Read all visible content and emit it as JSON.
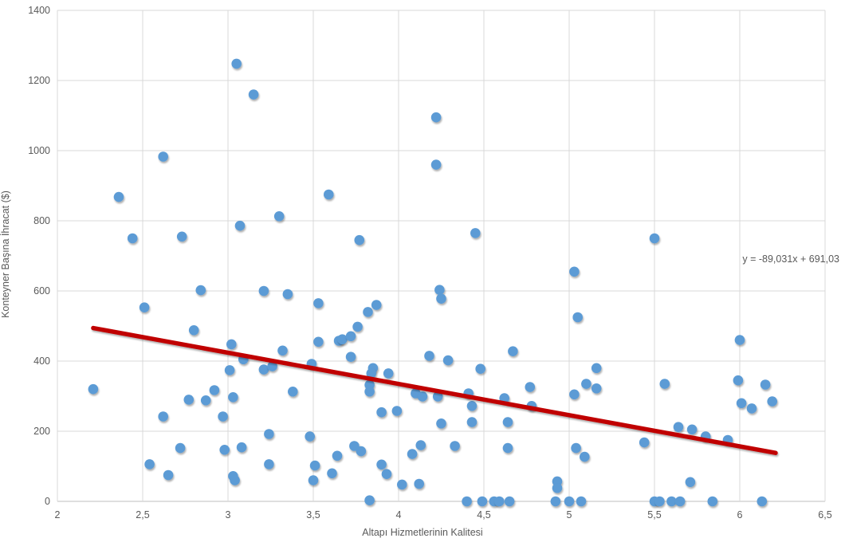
{
  "chart_data": {
    "type": "scatter",
    "title": "",
    "xlabel": "Altapı Hizmetlerinin Kalitesi",
    "ylabel": "Konteyner Başına İhracat ($)",
    "xlim": [
      2,
      6.5
    ],
    "ylim": [
      0,
      1400
    ],
    "grid": true,
    "legend": "none",
    "point_color": "#5B9BD5",
    "gridline_color": "#D9D9D9",
    "text_color": "#595959",
    "x_ticks": [
      {
        "v": 2,
        "label": "2"
      },
      {
        "v": 2.5,
        "label": "2,5"
      },
      {
        "v": 3,
        "label": "3"
      },
      {
        "v": 3.5,
        "label": "3,5"
      },
      {
        "v": 4,
        "label": "4"
      },
      {
        "v": 4.5,
        "label": "4,5"
      },
      {
        "v": 5,
        "label": "5"
      },
      {
        "v": 5.5,
        "label": "5,5"
      },
      {
        "v": 6,
        "label": "6"
      },
      {
        "v": 6.5,
        "label": "6,5"
      }
    ],
    "y_ticks": [
      {
        "v": 0,
        "label": "0"
      },
      {
        "v": 200,
        "label": "200"
      },
      {
        "v": 400,
        "label": "400"
      },
      {
        "v": 600,
        "label": "600"
      },
      {
        "v": 800,
        "label": "800"
      },
      {
        "v": 1000,
        "label": "1000"
      },
      {
        "v": 1200,
        "label": "1200"
      },
      {
        "v": 1400,
        "label": "1400"
      }
    ],
    "trendline": {
      "equation_label": "y = -89,031x + 691,03",
      "slope": -89.031,
      "intercept": 691.03,
      "x_start": 2.21,
      "x_end": 6.21,
      "color": "#C00000"
    },
    "points": [
      [
        2.21,
        320
      ],
      [
        2.36,
        868
      ],
      [
        2.44,
        750
      ],
      [
        2.51,
        553
      ],
      [
        2.54,
        106
      ],
      [
        2.62,
        983
      ],
      [
        2.62,
        242
      ],
      [
        2.65,
        75
      ],
      [
        2.72,
        152
      ],
      [
        2.73,
        755
      ],
      [
        2.77,
        290
      ],
      [
        2.8,
        488
      ],
      [
        2.84,
        602
      ],
      [
        2.87,
        288
      ],
      [
        2.92,
        317
      ],
      [
        2.97,
        242
      ],
      [
        2.98,
        147
      ],
      [
        3.01,
        374
      ],
      [
        3.02,
        448
      ],
      [
        3.03,
        297
      ],
      [
        3.03,
        72
      ],
      [
        3.04,
        60
      ],
      [
        3.05,
        1248
      ],
      [
        3.07,
        786
      ],
      [
        3.08,
        154
      ],
      [
        3.09,
        405
      ],
      [
        3.15,
        1160
      ],
      [
        3.21,
        600
      ],
      [
        3.21,
        376
      ],
      [
        3.24,
        192
      ],
      [
        3.24,
        106
      ],
      [
        3.26,
        385
      ],
      [
        3.3,
        813
      ],
      [
        3.32,
        430
      ],
      [
        3.35,
        591
      ],
      [
        3.38,
        313
      ],
      [
        3.48,
        185
      ],
      [
        3.49,
        392
      ],
      [
        3.5,
        60
      ],
      [
        3.51,
        102
      ],
      [
        3.53,
        565
      ],
      [
        3.53,
        455
      ],
      [
        3.59,
        875
      ],
      [
        3.61,
        80
      ],
      [
        3.64,
        130
      ],
      [
        3.65,
        458
      ],
      [
        3.67,
        462
      ],
      [
        3.72,
        471
      ],
      [
        3.72,
        412
      ],
      [
        3.74,
        158
      ],
      [
        3.76,
        498
      ],
      [
        3.77,
        745
      ],
      [
        3.78,
        143
      ],
      [
        3.82,
        540
      ],
      [
        3.83,
        332
      ],
      [
        3.83,
        313
      ],
      [
        3.83,
        3
      ],
      [
        3.85,
        380
      ],
      [
        3.84,
        365
      ],
      [
        3.87,
        560
      ],
      [
        3.9,
        254
      ],
      [
        3.9,
        105
      ],
      [
        3.93,
        78
      ],
      [
        3.94,
        365
      ],
      [
        3.99,
        258
      ],
      [
        4.02,
        48
      ],
      [
        4.08,
        135
      ],
      [
        4.1,
        308
      ],
      [
        4.12,
        50
      ],
      [
        4.13,
        160
      ],
      [
        4.14,
        299
      ],
      [
        4.18,
        415
      ],
      [
        4.22,
        1095
      ],
      [
        4.22,
        960
      ],
      [
        4.23,
        299
      ],
      [
        4.24,
        603
      ],
      [
        4.25,
        578
      ],
      [
        4.25,
        222
      ],
      [
        4.29,
        402
      ],
      [
        4.33,
        158
      ],
      [
        4.4,
        0
      ],
      [
        4.41,
        308
      ],
      [
        4.43,
        272
      ],
      [
        4.43,
        226
      ],
      [
        4.45,
        765
      ],
      [
        4.48,
        378
      ],
      [
        4.49,
        0
      ],
      [
        4.56,
        0
      ],
      [
        4.59,
        0
      ],
      [
        4.62,
        294
      ],
      [
        4.64,
        226
      ],
      [
        4.64,
        152
      ],
      [
        4.65,
        0
      ],
      [
        4.67,
        428
      ],
      [
        4.77,
        326
      ],
      [
        4.78,
        272
      ],
      [
        4.92,
        0
      ],
      [
        4.93,
        57
      ],
      [
        4.93,
        38
      ],
      [
        5.0,
        0
      ],
      [
        5.03,
        655
      ],
      [
        5.03,
        305
      ],
      [
        5.04,
        152
      ],
      [
        5.05,
        525
      ],
      [
        5.07,
        0
      ],
      [
        5.09,
        127
      ],
      [
        5.1,
        335
      ],
      [
        5.16,
        380
      ],
      [
        5.16,
        322
      ],
      [
        5.44,
        168
      ],
      [
        5.5,
        750
      ],
      [
        5.5,
        0
      ],
      [
        5.53,
        0
      ],
      [
        5.56,
        335
      ],
      [
        5.6,
        0
      ],
      [
        5.64,
        212
      ],
      [
        5.65,
        0
      ],
      [
        5.71,
        55
      ],
      [
        5.72,
        205
      ],
      [
        5.8,
        185
      ],
      [
        5.84,
        0
      ],
      [
        5.93,
        175
      ],
      [
        5.99,
        345
      ],
      [
        6.0,
        460
      ],
      [
        6.01,
        280
      ],
      [
        6.07,
        265
      ],
      [
        6.13,
        0
      ],
      [
        6.15,
        333
      ],
      [
        6.19,
        285
      ]
    ]
  }
}
